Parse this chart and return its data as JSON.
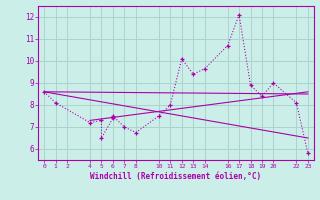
{
  "xlabel": "Windchill (Refroidissement éolien,°C)",
  "background_color": "#cceee8",
  "grid_color": "#aad4ce",
  "line_color": "#aa00aa",
  "x_ticks": [
    0,
    1,
    2,
    4,
    5,
    6,
    7,
    8,
    10,
    11,
    12,
    13,
    14,
    16,
    17,
    18,
    19,
    20,
    22,
    23
  ],
  "ylim": [
    5.5,
    12.5
  ],
  "xlim": [
    -0.5,
    23.5
  ],
  "yticks": [
    6,
    7,
    8,
    9,
    10,
    11,
    12
  ],
  "series": [
    [
      0,
      8.6
    ],
    [
      1,
      8.1
    ],
    [
      4,
      7.2
    ],
    [
      5,
      7.3
    ],
    [
      5,
      6.5
    ],
    [
      6,
      7.4
    ],
    [
      6,
      7.5
    ],
    [
      7,
      7.0
    ],
    [
      8,
      6.75
    ],
    [
      10,
      7.5
    ],
    [
      11,
      8.0
    ],
    [
      12,
      10.1
    ],
    [
      13,
      9.4
    ],
    [
      14,
      9.65
    ],
    [
      16,
      10.7
    ],
    [
      17,
      12.1
    ],
    [
      18,
      8.9
    ],
    [
      19,
      8.4
    ],
    [
      20,
      9.0
    ],
    [
      22,
      8.1
    ],
    [
      23,
      5.8
    ]
  ],
  "line2": [
    [
      0,
      8.6
    ],
    [
      23,
      8.5
    ]
  ],
  "line3": [
    [
      0,
      8.6
    ],
    [
      23,
      6.5
    ]
  ],
  "line4": [
    [
      4,
      7.3
    ],
    [
      23,
      8.6
    ]
  ]
}
